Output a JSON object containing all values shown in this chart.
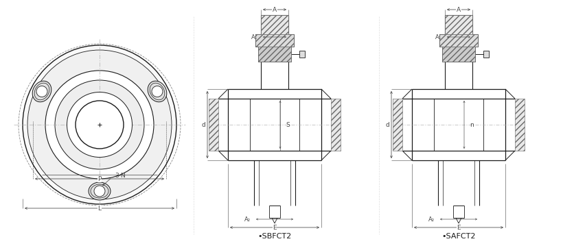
{
  "bg_color": "#ffffff",
  "line_color": "#1a1a1a",
  "dim_color": "#444444",
  "label_sbfct2": "•SBFCT2",
  "label_safct2": "•SAFCT2",
  "dim_labels": {
    "P": "P",
    "L": "L",
    "3N": "3-N",
    "A": "A",
    "A1": "A₁",
    "A2": "A₂",
    "E": "E",
    "S": "S",
    "d": "d",
    "n": "n"
  },
  "font_size": 6.5,
  "font_size_model": 8.0
}
